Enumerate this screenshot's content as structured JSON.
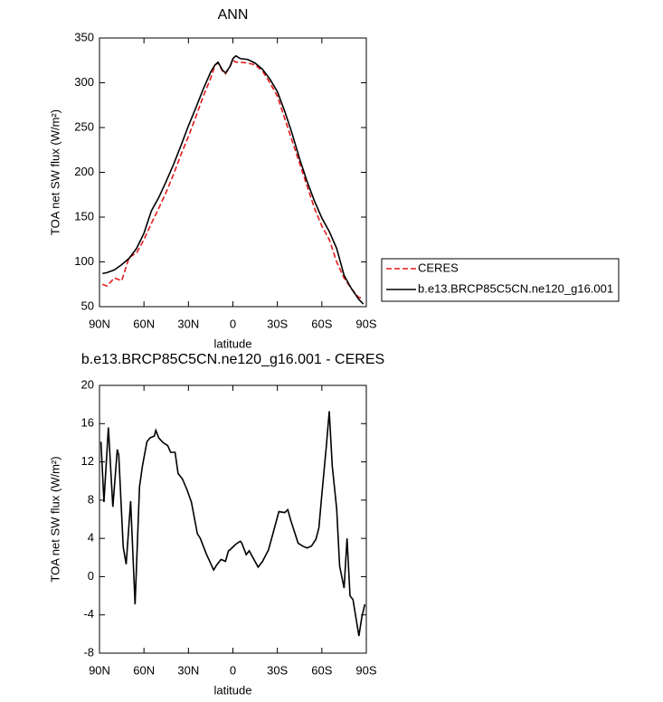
{
  "chart_data": [
    {
      "type": "line",
      "title": "ANN",
      "x_label": "latitude",
      "y_label": "TOA net SW flux (W/m²)",
      "x": [
        88,
        85,
        80,
        75,
        70,
        65,
        60,
        55,
        50,
        45,
        40,
        35,
        30,
        25,
        20,
        15,
        12,
        10,
        7,
        5,
        2,
        0,
        -2,
        -5,
        -10,
        -15,
        -20,
        -25,
        -30,
        -35,
        -40,
        -45,
        -50,
        -55,
        -60,
        -65,
        -70,
        -75,
        -80,
        -85,
        -88
      ],
      "series": [
        {
          "name": "CERES",
          "color": "#e41a1c",
          "dash": true,
          "values": [
            75,
            73,
            82,
            79,
            105,
            110,
            125,
            143,
            160,
            178,
            198,
            220,
            240,
            262,
            285,
            305,
            320,
            322,
            313,
            310,
            318,
            325,
            323,
            323,
            322,
            320,
            313,
            300,
            285,
            260,
            235,
            210,
            185,
            160,
            140,
            125,
            100,
            82,
            70,
            60,
            60
          ]
        },
        {
          "name": "b.e13.BRCP85C5CN.ne120_g16.001",
          "color": "#000000",
          "dash": false,
          "values": [
            87,
            88,
            91,
            97,
            104,
            115,
            132,
            157,
            172,
            190,
            209,
            230,
            252,
            272,
            293,
            312,
            320,
            323,
            314,
            311,
            318,
            327,
            330,
            327,
            326,
            322,
            315,
            304,
            290,
            268,
            243,
            215,
            190,
            168,
            149,
            134,
            115,
            85,
            70,
            58,
            53
          ]
        }
      ],
      "xlim": [
        90,
        -90
      ],
      "xticks": [
        {
          "value": 90,
          "label": "90N"
        },
        {
          "value": 60,
          "label": "60N"
        },
        {
          "value": 30,
          "label": "30N"
        },
        0,
        {
          "value": -30,
          "label": "30S"
        },
        {
          "value": -60,
          "label": "60S"
        },
        {
          "value": -90,
          "label": "90S"
        }
      ],
      "ylim": [
        50,
        350
      ],
      "yticks": [
        50,
        100,
        150,
        200,
        250,
        300,
        350
      ],
      "legend": "right"
    },
    {
      "type": "line",
      "title": "b.e13.BRCP85C5CN.ne120_g16.001 - CERES",
      "x_label": "latitude",
      "y_label": "TOA net SW flux (W/m²)",
      "x": [
        89,
        87,
        84,
        81,
        78,
        77,
        74,
        72,
        69,
        66,
        63,
        61,
        58,
        56,
        53,
        52,
        50,
        47,
        44,
        42,
        39,
        37,
        34,
        31,
        28,
        24,
        22,
        18,
        13,
        11,
        8,
        5,
        3,
        2,
        -2,
        -5,
        -6,
        -9,
        -11,
        -17,
        -20,
        -24,
        -27,
        -31,
        -35,
        -37,
        -39,
        -44,
        -47,
        -50,
        -53,
        -56,
        -58,
        -60,
        -63,
        -65,
        -67,
        -70,
        -72,
        -75,
        -77,
        -79,
        -81,
        -85,
        -87,
        -89
      ],
      "values": [
        14.1,
        7.8,
        15.6,
        7.3,
        13.3,
        12.7,
        3.1,
        1.3,
        7.9,
        -2.9,
        9.4,
        11.6,
        14.1,
        14.5,
        14.7,
        15.3,
        14.5,
        14.0,
        13.7,
        13.0,
        13.0,
        10.8,
        10.2,
        9.1,
        7.8,
        4.5,
        4.0,
        2.4,
        0.7,
        1.2,
        1.8,
        1.6,
        2.7,
        2.8,
        3.4,
        3.7,
        3.5,
        2.3,
        2.7,
        1.0,
        1.6,
        2.8,
        4.5,
        6.8,
        6.7,
        7.0,
        5.9,
        3.5,
        3.2,
        3.0,
        3.2,
        3.9,
        5.1,
        8.6,
        13.6,
        17.3,
        11.6,
        7.1,
        1.1,
        -1.2,
        4.0,
        -2.0,
        -2.4,
        -6.2,
        -4.2,
        -2.9
      ],
      "color": "#000000",
      "xlim": [
        90,
        -90
      ],
      "xticks": [
        {
          "value": 90,
          "label": "90N"
        },
        {
          "value": 60,
          "label": "60N"
        },
        {
          "value": 30,
          "label": "30N"
        },
        0,
        {
          "value": -30,
          "label": "30S"
        },
        {
          "value": -60,
          "label": "60S"
        },
        {
          "value": -90,
          "label": "90S"
        }
      ],
      "ylim": [
        -8,
        20
      ],
      "yticks": [
        -8,
        -4,
        0,
        4,
        8,
        12,
        16,
        20
      ]
    }
  ]
}
